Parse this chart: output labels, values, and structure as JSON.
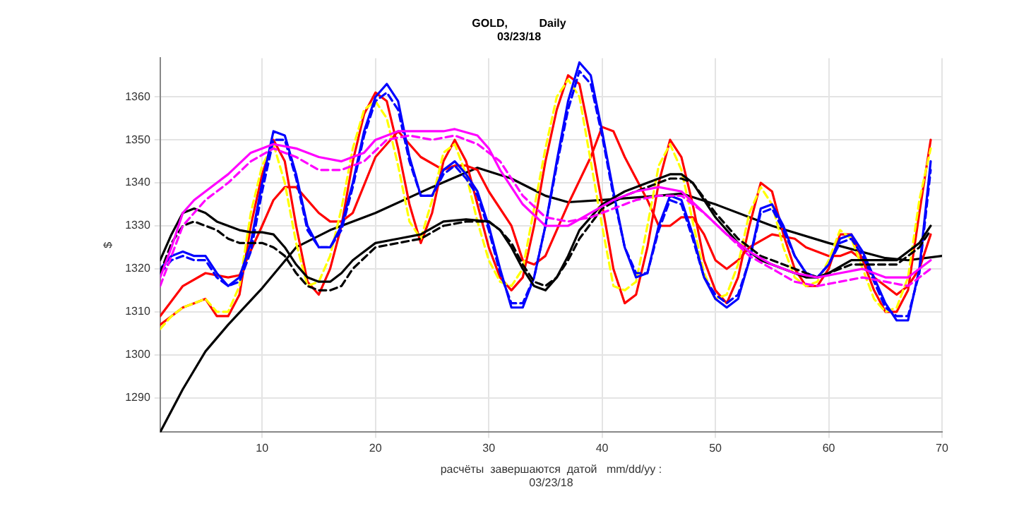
{
  "chart_data": {
    "type": "line",
    "title": "GOLD,          Daily",
    "subtitle": "03/23/18",
    "xlabel": "расчёты  завершаются  датой   mm/dd/yy :\n03/23/18",
    "ylabel": "$",
    "xlim": [
      1,
      70
    ],
    "xticks": [
      10,
      20,
      30,
      40,
      50,
      60,
      70
    ],
    "ylim": [
      1282,
      1369
    ],
    "yticks": [
      1290,
      1300,
      1310,
      1320,
      1330,
      1340,
      1350,
      1360
    ],
    "grid": true,
    "marker": "none",
    "line_style": "solid",
    "series": [
      {
        "color": "#ff00ff",
        "x": [
          1,
          2,
          3,
          4,
          5,
          7,
          9,
          11,
          13,
          15,
          17,
          19,
          20,
          22,
          24,
          26,
          27,
          29,
          30,
          31,
          33,
          35,
          37,
          39,
          41,
          43,
          45,
          47,
          49,
          51,
          53,
          55,
          57,
          59,
          61,
          63,
          65,
          67,
          69
        ],
        "values": [
          1318,
          1325,
          1333,
          1336,
          1338,
          1342,
          1347,
          1349,
          1348,
          1346,
          1345,
          1347,
          1350,
          1352,
          1352,
          1352,
          1352.5,
          1351,
          1348,
          1343,
          1335,
          1330,
          1330,
          1333,
          1336,
          1338,
          1339,
          1338,
          1333,
          1328,
          1324,
          1321,
          1319,
          1318,
          1319,
          1320,
          1318,
          1318,
          1322
        ]
      },
      {
        "color": "#ff00ff",
        "line_style": "dashed",
        "x": [
          1,
          3,
          5,
          7,
          9,
          11,
          13,
          15,
          17,
          19,
          21,
          23,
          25,
          27,
          29,
          31,
          33,
          35,
          37,
          39,
          41,
          43,
          45,
          47,
          49,
          51,
          53,
          55,
          57,
          59,
          61,
          63,
          65,
          67,
          69
        ],
        "values": [
          1316,
          1330,
          1336,
          1340,
          1345,
          1348,
          1346,
          1343,
          1343,
          1345,
          1350,
          1351,
          1350,
          1351,
          1349,
          1345,
          1337,
          1332,
          1331,
          1332,
          1334,
          1336,
          1337,
          1337,
          1333,
          1328,
          1323,
          1320,
          1317,
          1316,
          1317,
          1318,
          1317,
          1316,
          1320
        ]
      },
      {
        "color": "#000000",
        "x": [
          1,
          2,
          3,
          4,
          5,
          6,
          7,
          8,
          9,
          10,
          11,
          12,
          13,
          14,
          15,
          16,
          17,
          18,
          20,
          22,
          24,
          26,
          28,
          30,
          31,
          32,
          33,
          34,
          35,
          36,
          37,
          38,
          40,
          42,
          44,
          46,
          47,
          48,
          50,
          52,
          54,
          56,
          58,
          59,
          60,
          62,
          64,
          66,
          68,
          69
        ],
        "values": [
          1322,
          1328,
          1333,
          1334,
          1333,
          1331,
          1330,
          1329,
          1328.5,
          1328.5,
          1328,
          1325,
          1321,
          1318,
          1317,
          1317,
          1319,
          1322,
          1326,
          1327,
          1328,
          1331,
          1331.5,
          1331,
          1329,
          1325,
          1320,
          1316,
          1315,
          1318,
          1323,
          1329,
          1335,
          1338,
          1340,
          1342,
          1342,
          1340,
          1332,
          1326,
          1322,
          1320,
          1318,
          1318,
          1319,
          1322,
          1322,
          1322,
          1326,
          1330
        ]
      },
      {
        "color": "#000000",
        "line_style": "dashed",
        "x": [
          1,
          2,
          3,
          4,
          5,
          6,
          7,
          8,
          9,
          10,
          11,
          12,
          13,
          14,
          15,
          16,
          17,
          18,
          20,
          22,
          24,
          26,
          28,
          30,
          31,
          32,
          33,
          34,
          35,
          36,
          37,
          38,
          40,
          42,
          44,
          46,
          47,
          48,
          50,
          52,
          54,
          56,
          58,
          59,
          60,
          62,
          64,
          66,
          68,
          69
        ],
        "values": [
          1319,
          1326,
          1330,
          1331,
          1330,
          1329,
          1327,
          1326,
          1326,
          1326,
          1325,
          1323,
          1319,
          1316,
          1315,
          1315,
          1316,
          1320,
          1325,
          1326,
          1327,
          1330,
          1331,
          1331,
          1329,
          1326,
          1321,
          1317,
          1316,
          1318,
          1322,
          1327,
          1334,
          1337,
          1339,
          1341,
          1341,
          1340,
          1333,
          1327,
          1323,
          1321,
          1319,
          1318,
          1319,
          1321,
          1321,
          1321,
          1325,
          1329
        ]
      },
      {
        "color": "#0000ff",
        "x": [
          1,
          2,
          3,
          4,
          5,
          6,
          7,
          8,
          9,
          10,
          11,
          12,
          13,
          14,
          15,
          16,
          17,
          18,
          19,
          20,
          21,
          22,
          23,
          24,
          25,
          26,
          27,
          28,
          29,
          30,
          31,
          32,
          33,
          34,
          35,
          36,
          37,
          38,
          39,
          40,
          41,
          42,
          43,
          44,
          45,
          46,
          47,
          48,
          49,
          50,
          51,
          52,
          53,
          54,
          55,
          56,
          57,
          58,
          59,
          60,
          61,
          62,
          63,
          64,
          65,
          66,
          67,
          68,
          69
        ],
        "values": [
          1320,
          1323,
          1324,
          1323,
          1323,
          1319,
          1316,
          1318,
          1326,
          1340,
          1352,
          1351,
          1342,
          1330,
          1325,
          1325,
          1330,
          1340,
          1352,
          1360,
          1363,
          1359,
          1346,
          1337,
          1337,
          1343,
          1345,
          1342,
          1338,
          1330,
          1320,
          1311,
          1311,
          1318,
          1330,
          1345,
          1359,
          1368,
          1365,
          1352,
          1338,
          1325,
          1318,
          1319,
          1330,
          1337,
          1336,
          1328,
          1318,
          1313,
          1311,
          1313,
          1322,
          1334,
          1335,
          1330,
          1323,
          1319,
          1318,
          1321,
          1327,
          1328,
          1324,
          1318,
          1312,
          1308,
          1308,
          1320,
          1345
        ]
      },
      {
        "color": "#0000ff",
        "line_style": "dashed",
        "x": [
          1,
          2,
          3,
          4,
          5,
          6,
          7,
          8,
          9,
          10,
          11,
          12,
          13,
          14,
          15,
          16,
          17,
          18,
          19,
          20,
          21,
          22,
          23,
          24,
          25,
          26,
          27,
          28,
          29,
          30,
          31,
          32,
          33,
          34,
          35,
          36,
          37,
          38,
          39,
          40,
          41,
          42,
          43,
          44,
          45,
          46,
          47,
          48,
          49,
          50,
          51,
          52,
          53,
          54,
          55,
          56,
          57,
          58,
          59,
          60,
          61,
          62,
          63,
          64,
          65,
          66,
          67,
          68,
          69
        ],
        "values": [
          1319,
          1322,
          1323,
          1322,
          1322,
          1318,
          1316,
          1317,
          1324,
          1338,
          1350,
          1350,
          1341,
          1329,
          1325,
          1325,
          1329,
          1339,
          1351,
          1359,
          1361,
          1357,
          1345,
          1337,
          1337,
          1342,
          1344,
          1341,
          1337,
          1329,
          1319,
          1312,
          1312,
          1318,
          1330,
          1344,
          1357,
          1366,
          1363,
          1351,
          1337,
          1325,
          1319,
          1319,
          1329,
          1336,
          1335,
          1327,
          1318,
          1314,
          1312,
          1314,
          1322,
          1333,
          1334,
          1329,
          1323,
          1319,
          1318,
          1321,
          1326,
          1327,
          1323,
          1317,
          1311,
          1309,
          1309,
          1319,
          1343
        ]
      },
      {
        "color": "#ffff00",
        "line_style": "dashed",
        "x": [
          1,
          2,
          3,
          4,
          5,
          6,
          7,
          8,
          9,
          10,
          11,
          12,
          13,
          14,
          15,
          16,
          17,
          18,
          19,
          20,
          21,
          22,
          23,
          24,
          25,
          26,
          27,
          28,
          29,
          30,
          31,
          32,
          33,
          34,
          35,
          36,
          37,
          38,
          39,
          40,
          41,
          42,
          43,
          44,
          45,
          46,
          47,
          48,
          49,
          50,
          51,
          52,
          53,
          54,
          55,
          56,
          57,
          58,
          59,
          60,
          61,
          62,
          63,
          64,
          65,
          66,
          67,
          68,
          69
        ],
        "values": [
          1306,
          1309,
          1311,
          1312,
          1313,
          1310,
          1310,
          1316,
          1333,
          1344,
          1349,
          1340,
          1326,
          1316,
          1317,
          1323,
          1334,
          1348,
          1357,
          1359,
          1355,
          1344,
          1331,
          1327,
          1336,
          1347,
          1349,
          1342,
          1331,
          1322,
          1317,
          1316,
          1320,
          1334,
          1348,
          1360,
          1364,
          1360,
          1345,
          1330,
          1316,
          1315,
          1317,
          1330,
          1344,
          1349,
          1343,
          1331,
          1319,
          1313,
          1314,
          1321,
          1333,
          1339,
          1335,
          1325,
          1318,
          1316,
          1317,
          1322,
          1329,
          1327,
          1320,
          1313,
          1310,
          1311,
          1318,
          1336,
          1348
        ]
      },
      {
        "color": "#ff0000",
        "x": [
          1,
          2,
          3,
          4,
          5,
          6,
          7,
          8,
          9,
          10,
          11,
          12,
          13,
          14,
          15,
          16,
          17,
          18,
          19,
          20,
          21,
          22,
          23,
          24,
          25,
          26,
          27,
          28,
          29,
          30,
          31,
          32,
          33,
          34,
          35,
          36,
          37,
          38,
          39,
          40,
          41,
          42,
          43,
          44,
          45,
          46,
          47,
          48,
          49,
          50,
          51,
          52,
          53,
          54,
          55,
          56,
          57,
          58,
          59,
          60,
          61,
          62,
          63,
          64,
          65,
          66,
          67,
          68,
          69
        ],
        "values": [
          1307,
          1309,
          1311,
          1312,
          1313,
          1309,
          1309,
          1314,
          1330,
          1342,
          1350,
          1345,
          1330,
          1317,
          1314,
          1320,
          1330,
          1345,
          1356,
          1361,
          1359,
          1348,
          1335,
          1326,
          1333,
          1345,
          1350,
          1345,
          1335,
          1325,
          1318,
          1315,
          1318,
          1330,
          1345,
          1357,
          1365,
          1363,
          1350,
          1335,
          1320,
          1312,
          1314,
          1325,
          1340,
          1350,
          1346,
          1335,
          1322,
          1315,
          1312,
          1318,
          1330,
          1340,
          1338,
          1328,
          1320,
          1316,
          1316,
          1320,
          1328,
          1328,
          1322,
          1315,
          1310,
          1310,
          1315,
          1333,
          1350
        ]
      },
      {
        "color": "#ff0000",
        "x": [
          1,
          3,
          5,
          7,
          8,
          10,
          11,
          12,
          13,
          15,
          16,
          17,
          18,
          20,
          22,
          24,
          26,
          27,
          28,
          29,
          30,
          32,
          33,
          34,
          35,
          37,
          39,
          40,
          41,
          42,
          44,
          45,
          46,
          47,
          48,
          49,
          50,
          51,
          52,
          53,
          55,
          57,
          58,
          60,
          61,
          62,
          63,
          64,
          66,
          67,
          68,
          69
        ],
        "values": [
          1309,
          1316,
          1319,
          1318,
          1318.5,
          1330,
          1336,
          1339,
          1339,
          1333,
          1331,
          1331,
          1333,
          1346,
          1352,
          1346,
          1343,
          1344,
          1344,
          1343,
          1338,
          1330,
          1322,
          1321,
          1323,
          1335,
          1346,
          1353,
          1352,
          1346,
          1336,
          1330,
          1330,
          1332,
          1332,
          1328,
          1322,
          1320,
          1322,
          1325,
          1328,
          1327,
          1325,
          1323,
          1323,
          1324,
          1322,
          1318,
          1314,
          1316,
          1320,
          1328
        ]
      },
      {
        "color": "#000000",
        "x": [
          1,
          3,
          5,
          7,
          10,
          13,
          16,
          20,
          25,
          29,
          32,
          35,
          37,
          40,
          45,
          47,
          50,
          55,
          60,
          65,
          67,
          70
        ],
        "values": [
          1282,
          1292,
          1300.8,
          1307,
          1315.5,
          1325,
          1329,
          1333,
          1339,
          1343.5,
          1341,
          1337,
          1335.5,
          1336,
          1337,
          1337.5,
          1335,
          1330,
          1326,
          1322.5,
          1322,
          1323
        ]
      }
    ]
  }
}
